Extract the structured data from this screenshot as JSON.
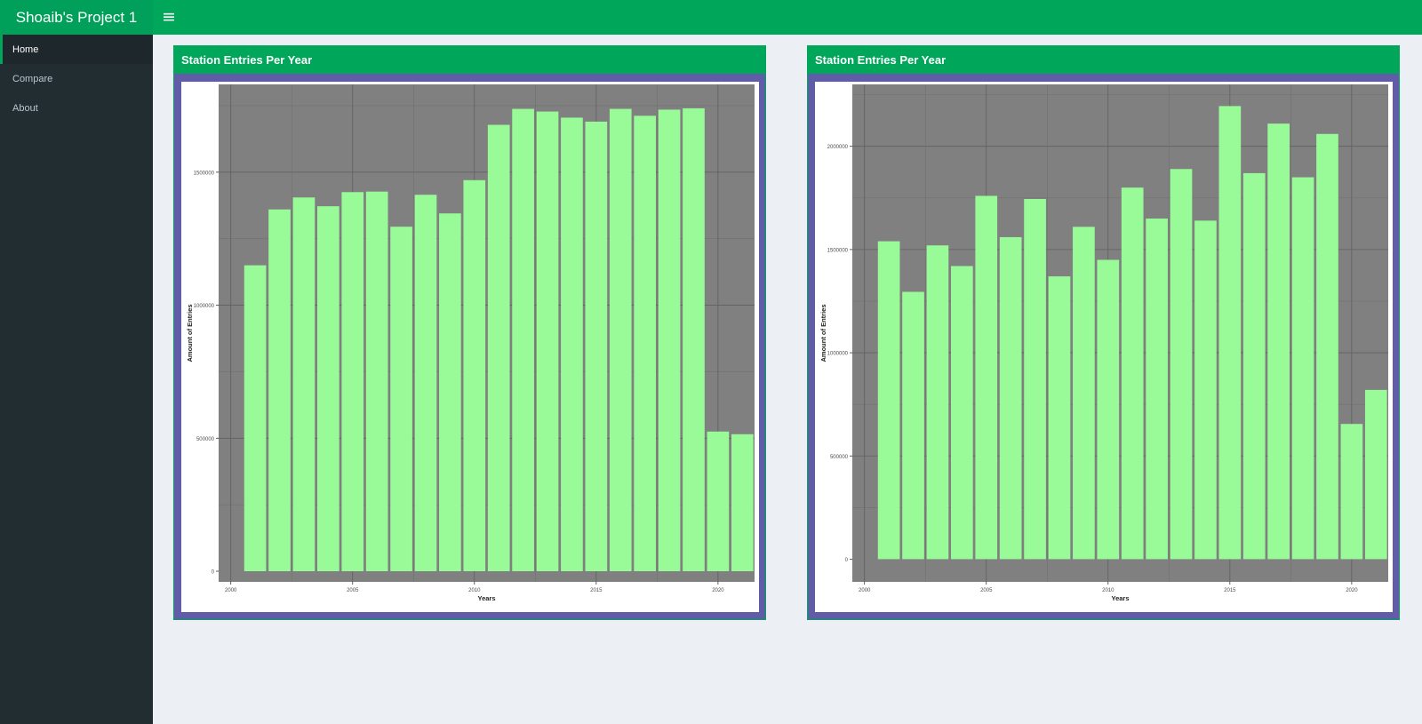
{
  "app": {
    "title": "Shoaib's Project 1"
  },
  "header": {
    "menu_icon": "≡"
  },
  "sidebar": {
    "items": [
      {
        "label": "Home",
        "active": true
      },
      {
        "label": "Compare",
        "active": false
      },
      {
        "label": "About",
        "active": false
      }
    ]
  },
  "colors": {
    "brand_green": "#00a65a",
    "sidebar_bg": "#222d32",
    "box_border": "#605ca8",
    "panel_bg": "#808080",
    "bar_fill": "#98fb98"
  },
  "boxes": [
    {
      "title": "Station Entries Per Year"
    },
    {
      "title": "Station Entries Per Year"
    }
  ],
  "chart_data": [
    {
      "type": "bar",
      "title": "",
      "xlabel": "Years",
      "ylabel": "Amount of Entries",
      "x": [
        2001,
        2002,
        2003,
        2004,
        2005,
        2006,
        2007,
        2008,
        2009,
        2010,
        2011,
        2012,
        2013,
        2014,
        2015,
        2016,
        2017,
        2018,
        2019,
        2020,
        2021
      ],
      "values": [
        1150000,
        1360000,
        1405000,
        1372000,
        1425000,
        1427000,
        1295000,
        1415000,
        1345000,
        1470000,
        1678000,
        1738000,
        1728000,
        1705000,
        1690000,
        1738000,
        1712000,
        1735000,
        1740000,
        525000,
        515000
      ],
      "xticks": [
        "2000",
        "2005",
        "2010",
        "2015",
        "2020"
      ],
      "yticks": [
        "0",
        "500000",
        "1000000",
        "1500000"
      ],
      "xlim": [
        1999.5,
        2021.5
      ],
      "ylim": [
        -40000,
        1830000
      ],
      "grid": true
    },
    {
      "type": "bar",
      "title": "",
      "xlabel": "Years",
      "ylabel": "Amount of Entries",
      "x": [
        2001,
        2002,
        2003,
        2004,
        2005,
        2006,
        2007,
        2008,
        2009,
        2010,
        2011,
        2012,
        2013,
        2014,
        2015,
        2016,
        2017,
        2018,
        2019,
        2020,
        2021
      ],
      "values": [
        1540000,
        1295000,
        1520000,
        1420000,
        1760000,
        1560000,
        1745000,
        1370000,
        1610000,
        1450000,
        1800000,
        1650000,
        1890000,
        1640000,
        2195000,
        1870000,
        2110000,
        1850000,
        2060000,
        655000,
        820000
      ],
      "xticks": [
        "2000",
        "2005",
        "2010",
        "2015",
        "2020"
      ],
      "yticks": [
        "0",
        "500000",
        "1000000",
        "1500000",
        "2000000"
      ],
      "xlim": [
        1999.5,
        2021.5
      ],
      "ylim": [
        -110000,
        2300000
      ],
      "grid": true
    }
  ]
}
